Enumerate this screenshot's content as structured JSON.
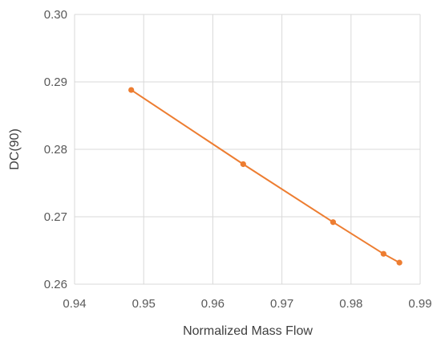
{
  "chart_data": {
    "type": "scatter",
    "xlabel": "Normalized Mass Flow",
    "ylabel": "DC(90)",
    "xlim": [
      0.94,
      0.99
    ],
    "ylim": [
      0.26,
      0.3
    ],
    "x_ticks": [
      "0.94",
      "0.95",
      "0.96",
      "0.97",
      "0.98",
      "0.99"
    ],
    "y_ticks": [
      "0.26",
      "0.27",
      "0.28",
      "0.29",
      "0.30"
    ],
    "grid": true,
    "legend": "none",
    "series": [
      {
        "x": [
          0.9482,
          0.9644,
          0.9774,
          0.9847,
          0.987
        ],
        "y": [
          0.2888,
          0.2778,
          0.2692,
          0.2645,
          0.2632
        ],
        "color": "#ED7D31",
        "line": true,
        "markers": true
      }
    ]
  }
}
